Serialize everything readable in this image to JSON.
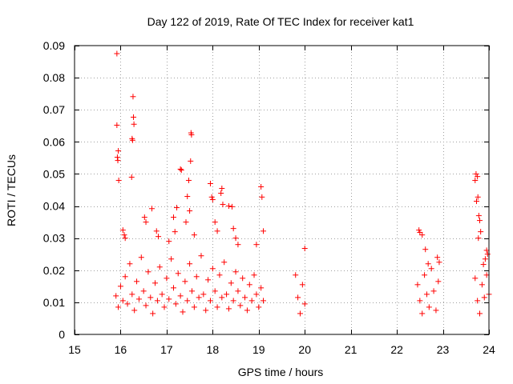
{
  "chart_data": {
    "type": "scatter",
    "title": "Day 122 of 2019, Rate Of TEC Index for receiver kat1",
    "xlabel": "GPS time / hours",
    "ylabel": "ROTI / TECUs",
    "xlim": [
      15,
      24
    ],
    "ylim": [
      0,
      0.09
    ],
    "grid": true,
    "marker": "+",
    "marker_color": "#ff0000",
    "x_ticks": [
      15,
      16,
      17,
      18,
      19,
      20,
      21,
      22,
      23,
      24
    ],
    "x_tick_labels": [
      "15",
      "16",
      "17",
      "18",
      "19",
      "20",
      "21",
      "22",
      "23",
      "24"
    ],
    "y_ticks": [
      0,
      0.01,
      0.02,
      0.03,
      0.04,
      0.05,
      0.06,
      0.07,
      0.08,
      0.09
    ],
    "y_tick_labels": [
      "0",
      "0.01",
      "0.02",
      "0.03",
      "0.04",
      "0.05",
      "0.06",
      "0.07",
      "0.08",
      "0.09"
    ],
    "series": [
      {
        "name": "ROTI",
        "points": [
          [
            15.92,
            0.0875
          ],
          [
            15.92,
            0.0652
          ],
          [
            15.95,
            0.0572
          ],
          [
            15.93,
            0.0552
          ],
          [
            15.94,
            0.0542
          ],
          [
            15.96,
            0.048
          ],
          [
            16.27,
            0.0741
          ],
          [
            16.28,
            0.0677
          ],
          [
            16.29,
            0.0655
          ],
          [
            16.25,
            0.061
          ],
          [
            16.26,
            0.0605
          ],
          [
            16.24,
            0.049
          ],
          [
            16.05,
            0.0325
          ],
          [
            16.08,
            0.031
          ],
          [
            16.1,
            0.03
          ],
          [
            16.52,
            0.0365
          ],
          [
            16.55,
            0.035
          ],
          [
            16.68,
            0.0392
          ],
          [
            16.78,
            0.0322
          ],
          [
            16.82,
            0.0305
          ],
          [
            17.05,
            0.029
          ],
          [
            17.15,
            0.0365
          ],
          [
            17.18,
            0.032
          ],
          [
            17.22,
            0.0395
          ],
          [
            17.3,
            0.0515
          ],
          [
            17.32,
            0.0512
          ],
          [
            17.45,
            0.043
          ],
          [
            17.48,
            0.048
          ],
          [
            17.52,
            0.054
          ],
          [
            17.53,
            0.0628
          ],
          [
            17.54,
            0.0622
          ],
          [
            17.5,
            0.0385
          ],
          [
            17.42,
            0.035
          ],
          [
            17.6,
            0.031
          ],
          [
            17.95,
            0.047
          ],
          [
            17.98,
            0.0428
          ],
          [
            18.0,
            0.042
          ],
          [
            18.05,
            0.035
          ],
          [
            18.1,
            0.0322
          ],
          [
            18.18,
            0.044
          ],
          [
            18.2,
            0.0455
          ],
          [
            18.22,
            0.0405
          ],
          [
            18.35,
            0.04
          ],
          [
            18.42,
            0.0398
          ],
          [
            18.45,
            0.033
          ],
          [
            18.5,
            0.03
          ],
          [
            18.55,
            0.028
          ],
          [
            18.95,
            0.028
          ],
          [
            19.05,
            0.046
          ],
          [
            19.07,
            0.0428
          ],
          [
            19.1,
            0.0322
          ],
          [
            20.0,
            0.0268
          ],
          [
            22.48,
            0.0325
          ],
          [
            22.5,
            0.0318
          ],
          [
            22.55,
            0.031
          ],
          [
            22.62,
            0.0265
          ],
          [
            22.68,
            0.022
          ],
          [
            22.88,
            0.024
          ],
          [
            22.92,
            0.0225
          ],
          [
            23.72,
            0.05
          ],
          [
            23.75,
            0.0492
          ],
          [
            23.7,
            0.048
          ],
          [
            23.73,
            0.0415
          ],
          [
            23.76,
            0.0428
          ],
          [
            23.78,
            0.037
          ],
          [
            23.8,
            0.0355
          ],
          [
            23.77,
            0.03
          ],
          [
            23.82,
            0.032
          ],
          [
            23.88,
            0.0218
          ],
          [
            23.95,
            0.0262
          ],
          [
            23.97,
            0.025
          ],
          [
            23.92,
            0.0235
          ],
          [
            15.9,
            0.012
          ],
          [
            15.95,
            0.0085
          ],
          [
            16.0,
            0.015
          ],
          [
            16.05,
            0.0105
          ],
          [
            16.1,
            0.018
          ],
          [
            16.15,
            0.0095
          ],
          [
            16.2,
            0.022
          ],
          [
            16.25,
            0.0125
          ],
          [
            16.3,
            0.0075
          ],
          [
            16.35,
            0.0165
          ],
          [
            16.4,
            0.011
          ],
          [
            16.45,
            0.024
          ],
          [
            16.5,
            0.0135
          ],
          [
            16.55,
            0.009
          ],
          [
            16.6,
            0.0195
          ],
          [
            16.65,
            0.0115
          ],
          [
            16.7,
            0.0065
          ],
          [
            16.75,
            0.016
          ],
          [
            16.8,
            0.0105
          ],
          [
            16.85,
            0.021
          ],
          [
            16.9,
            0.0125
          ],
          [
            16.95,
            0.0085
          ],
          [
            17.0,
            0.0175
          ],
          [
            17.05,
            0.011
          ],
          [
            17.1,
            0.0235
          ],
          [
            17.15,
            0.0145
          ],
          [
            17.2,
            0.0095
          ],
          [
            17.25,
            0.019
          ],
          [
            17.3,
            0.012
          ],
          [
            17.35,
            0.007
          ],
          [
            17.4,
            0.0165
          ],
          [
            17.45,
            0.0105
          ],
          [
            17.5,
            0.022
          ],
          [
            17.55,
            0.0135
          ],
          [
            17.6,
            0.0085
          ],
          [
            17.65,
            0.018
          ],
          [
            17.7,
            0.0115
          ],
          [
            17.75,
            0.0245
          ],
          [
            17.8,
            0.0125
          ],
          [
            17.85,
            0.0075
          ],
          [
            17.9,
            0.017
          ],
          [
            17.95,
            0.0105
          ],
          [
            18.0,
            0.0205
          ],
          [
            18.05,
            0.0135
          ],
          [
            18.1,
            0.0085
          ],
          [
            18.15,
            0.0185
          ],
          [
            18.2,
            0.0115
          ],
          [
            18.25,
            0.0225
          ],
          [
            18.3,
            0.0125
          ],
          [
            18.35,
            0.008
          ],
          [
            18.4,
            0.016
          ],
          [
            18.45,
            0.0105
          ],
          [
            18.5,
            0.0195
          ],
          [
            18.55,
            0.0135
          ],
          [
            18.6,
            0.009
          ],
          [
            18.65,
            0.0175
          ],
          [
            18.7,
            0.0115
          ],
          [
            18.75,
            0.0075
          ],
          [
            18.8,
            0.0155
          ],
          [
            18.85,
            0.0105
          ],
          [
            18.9,
            0.0185
          ],
          [
            18.95,
            0.0125
          ],
          [
            19.0,
            0.0085
          ],
          [
            19.05,
            0.0145
          ],
          [
            19.1,
            0.0105
          ],
          [
            19.8,
            0.0185
          ],
          [
            19.85,
            0.0115
          ],
          [
            19.9,
            0.0065
          ],
          [
            19.95,
            0.0155
          ],
          [
            20.0,
            0.0095
          ],
          [
            22.45,
            0.0155
          ],
          [
            22.5,
            0.0105
          ],
          [
            22.55,
            0.0065
          ],
          [
            22.6,
            0.0185
          ],
          [
            22.65,
            0.0125
          ],
          [
            22.7,
            0.0085
          ],
          [
            22.75,
            0.0205
          ],
          [
            22.8,
            0.0135
          ],
          [
            22.85,
            0.0075
          ],
          [
            22.9,
            0.0165
          ],
          [
            23.7,
            0.0175
          ],
          [
            23.75,
            0.0105
          ],
          [
            23.8,
            0.0065
          ],
          [
            23.85,
            0.0155
          ],
          [
            23.9,
            0.0115
          ],
          [
            23.95,
            0.0185
          ],
          [
            24.0,
            0.0125
          ]
        ]
      }
    ]
  }
}
